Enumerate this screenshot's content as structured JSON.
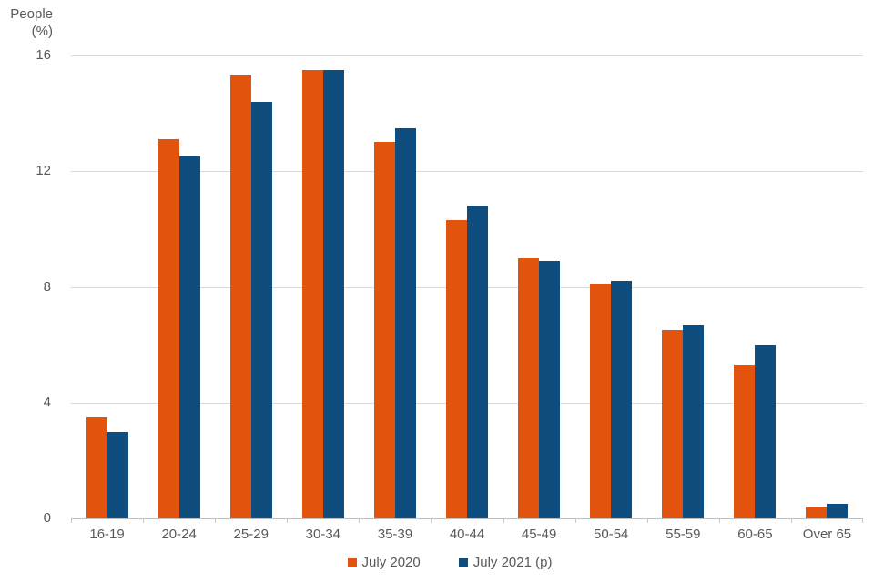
{
  "chart": {
    "y_axis_title": "People\n(%)",
    "y_ticks": [
      16,
      12,
      8,
      4,
      0
    ]
  },
  "chart_data": {
    "type": "bar",
    "title": "",
    "ylabel": "People (%)",
    "xlabel": "",
    "ylim": [
      0,
      16
    ],
    "grid": true,
    "legend_position": "bottom",
    "categories": [
      "16-19",
      "20-24",
      "25-29",
      "30-34",
      "35-39",
      "40-44",
      "45-49",
      "50-54",
      "55-59",
      "60-65",
      "Over 65"
    ],
    "series": [
      {
        "name": "July 2020",
        "color": "#e2530d",
        "values": [
          3.5,
          13.1,
          15.3,
          15.5,
          13.0,
          10.3,
          9.0,
          8.1,
          6.5,
          5.3,
          0.4
        ]
      },
      {
        "name": "July 2021 (p)",
        "color": "#0e4d7e",
        "values": [
          3.0,
          12.5,
          14.4,
          15.5,
          13.5,
          10.8,
          8.9,
          8.2,
          6.7,
          6.0,
          0.5
        ]
      }
    ],
    "colors": {
      "gridline": "#d9d9d9",
      "axis_line": "#bfbfbf",
      "text": "#595959"
    }
  }
}
